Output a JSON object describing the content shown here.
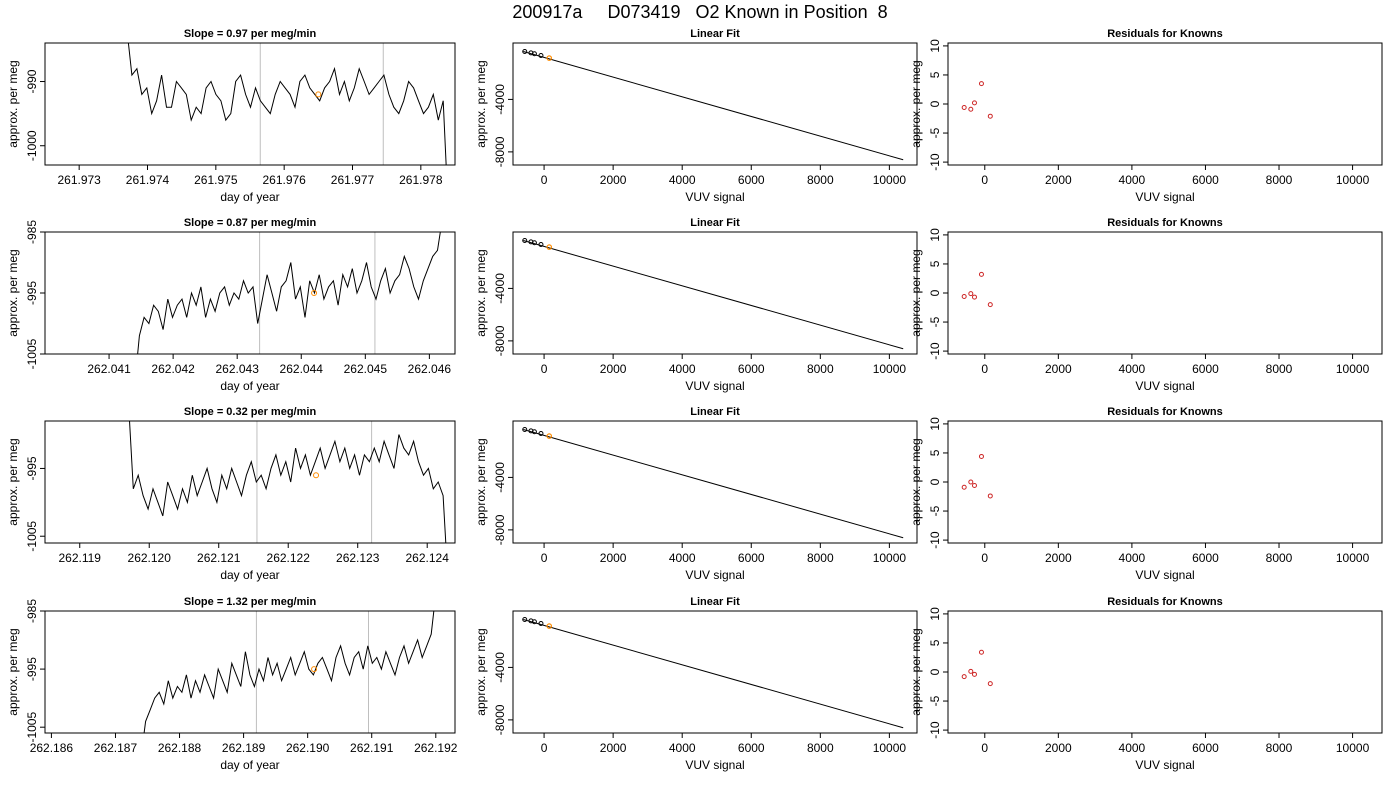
{
  "title": "200917a     D073419   O2 Known in Position  8",
  "chart_data": [
    {
      "type": "line",
      "title": "Slope =  0.97  per meg/min",
      "xlabel": "day of year",
      "ylabel": "approx. per meg",
      "xlim": [
        261.9725,
        261.9785
      ],
      "xticks": [
        "261.973",
        "261.974",
        "261.975",
        "261.976",
        "261.977",
        "261.978"
      ],
      "ylim": [
        -1003,
        -984
      ],
      "yticks": [
        "-990",
        "-1000"
      ],
      "vlines": [
        261.97565,
        261.97745
      ],
      "highlight": {
        "x": 261.9765,
        "y": -992
      },
      "series": [
        {
          "x_start": 261.9737,
          "x_end": 261.9784,
          "values": [
            -982,
            -989,
            -988,
            -992,
            -991,
            -995,
            -993,
            -989,
            -994,
            -994,
            -990,
            -991,
            -992,
            -996,
            -994,
            -995,
            -991,
            -990,
            -992,
            -993,
            -996,
            -995,
            -990,
            -989,
            -992,
            -994,
            -991,
            -993,
            -994,
            -995,
            -992,
            -990,
            -991,
            -992,
            -994,
            -990,
            -989,
            -991,
            -992,
            -993,
            -991,
            -990,
            -988,
            -992,
            -990,
            -993,
            -991,
            -988,
            -990,
            -992,
            -991,
            -990,
            -989,
            -992,
            -994,
            -995,
            -993,
            -990,
            -991,
            -993,
            -995,
            -994,
            -992,
            -996,
            -993,
            -1010
          ]
        }
      ]
    },
    {
      "type": "line",
      "title": "Linear Fit",
      "xlabel": "VUV signal",
      "ylabel": "approx. per meg",
      "xlim": [
        -900,
        10800
      ],
      "xticks": [
        "0",
        "2000",
        "4000",
        "6000",
        "8000",
        "10000"
      ],
      "ylim": [
        -9000,
        300
      ],
      "yticks": [
        "-4000",
        "-8000"
      ],
      "fit": {
        "x": [
          -600,
          10400
        ],
        "y": [
          -350,
          -8600
        ]
      },
      "knowns": {
        "x": [
          -560,
          -380,
          -280,
          -90
        ],
        "y": [
          -350,
          -450,
          -520,
          -650
        ]
      },
      "unknown": {
        "x": [
          150
        ],
        "y": [
          -850
        ]
      }
    },
    {
      "type": "scatter",
      "title": "Residuals for Knowns",
      "xlabel": "VUV signal",
      "ylabel": "approx. per meg",
      "xlim": [
        -1000,
        10800
      ],
      "xticks": [
        "0",
        "2000",
        "4000",
        "6000",
        "8000",
        "10000"
      ],
      "ylim": [
        -10.5,
        10.5
      ],
      "yticks": [
        "10",
        "5",
        "0",
        "-5",
        "-10"
      ],
      "x": [
        -560,
        -380,
        -280,
        -90,
        150
      ],
      "y": [
        -0.6,
        -0.9,
        0.2,
        3.5,
        -2.1
      ]
    },
    {
      "type": "line",
      "title": "Slope =  0.87  per meg/min",
      "xlabel": "day of year",
      "ylabel": "approx. per meg",
      "xlim": [
        262.04,
        262.0464
      ],
      "xticks": [
        "262.041",
        "262.042",
        "262.043",
        "262.044",
        "262.045",
        "262.046"
      ],
      "ylim": [
        -1005,
        -985
      ],
      "yticks": [
        "-985",
        "-995",
        "-1005"
      ],
      "vlines": [
        262.04335,
        262.04515
      ],
      "highlight": {
        "x": 262.0442,
        "y": -995
      },
      "series": [
        {
          "x_start": 262.0414,
          "x_end": 262.0462,
          "values": [
            -1010,
            -1002,
            -999,
            -1000,
            -997,
            -998,
            -1001,
            -996,
            -999,
            -997,
            -996,
            -999,
            -995,
            -997,
            -994,
            -999,
            -996,
            -998,
            -995,
            -994,
            -997,
            -995,
            -996,
            -993,
            -995,
            -994,
            -1000,
            -996,
            -992,
            -995,
            -998,
            -994,
            -993,
            -990,
            -996,
            -994,
            -999,
            -993,
            -995,
            -992,
            -996,
            -994,
            -993,
            -997,
            -992,
            -994,
            -991,
            -995,
            -993,
            -990,
            -994,
            -996,
            -993,
            -991,
            -995,
            -993,
            -992,
            -989,
            -991,
            -994,
            -996,
            -993,
            -991,
            -989,
            -988,
            -983
          ]
        }
      ]
    },
    {
      "type": "line",
      "title": "Linear Fit",
      "xlabel": "VUV signal",
      "ylabel": "approx. per meg",
      "xlim": [
        -900,
        10800
      ],
      "xticks": [
        "0",
        "2000",
        "4000",
        "6000",
        "8000",
        "10000"
      ],
      "ylim": [
        -9000,
        300
      ],
      "yticks": [
        "-4000",
        "-8000"
      ],
      "fit": {
        "x": [
          -600,
          10400
        ],
        "y": [
          -350,
          -8600
        ]
      },
      "knowns": {
        "x": [
          -560,
          -380,
          -280,
          -90
        ],
        "y": [
          -350,
          -450,
          -520,
          -650
        ]
      },
      "unknown": {
        "x": [
          150
        ],
        "y": [
          -850
        ]
      }
    },
    {
      "type": "scatter",
      "title": "Residuals for Knowns",
      "xlabel": "VUV signal",
      "ylabel": "approx. per meg",
      "xlim": [
        -1000,
        10800
      ],
      "xticks": [
        "0",
        "2000",
        "4000",
        "6000",
        "8000",
        "10000"
      ],
      "ylim": [
        -10.5,
        10.5
      ],
      "yticks": [
        "10",
        "5",
        "0",
        "-5",
        "-10"
      ],
      "x": [
        -560,
        -380,
        -280,
        -90,
        150
      ],
      "y": [
        -0.6,
        -0.1,
        -0.7,
        3.2,
        -2.0
      ]
    },
    {
      "type": "line",
      "title": "Slope =  0.32  per meg/min",
      "xlabel": "day of year",
      "ylabel": "approx. per meg",
      "xlim": [
        262.1185,
        262.1244
      ],
      "xticks": [
        "262.119",
        "262.120",
        "262.121",
        "262.122",
        "262.123",
        "262.124"
      ],
      "ylim": [
        -1006,
        -988
      ],
      "yticks": [
        "-995",
        "-1005"
      ],
      "vlines": [
        262.12155,
        262.1232
      ],
      "highlight": {
        "x": 262.1224,
        "y": -996
      },
      "series": [
        {
          "x_start": 262.1197,
          "x_end": 262.1243,
          "values": [
            -985,
            -998,
            -996,
            -999,
            -1001,
            -998,
            -1000,
            -1002,
            -997,
            -999,
            -1001,
            -998,
            -1000,
            -996,
            -999,
            -997,
            -995,
            -998,
            -1000,
            -996,
            -998,
            -995,
            -997,
            -999,
            -996,
            -994,
            -997,
            -996,
            -998,
            -995,
            -993,
            -996,
            -994,
            -997,
            -992,
            -995,
            -993,
            -996,
            -994,
            -992,
            -995,
            -993,
            -991,
            -994,
            -992,
            -995,
            -993,
            -996,
            -993,
            -994,
            -992,
            -994,
            -991,
            -993,
            -995,
            -990,
            -992,
            -993,
            -991,
            -994,
            -996,
            -995,
            -998,
            -997,
            -999,
            -1012
          ]
        }
      ]
    },
    {
      "type": "line",
      "title": "Linear Fit",
      "xlabel": "VUV signal",
      "ylabel": "approx. per meg",
      "xlim": [
        -900,
        10800
      ],
      "xticks": [
        "0",
        "2000",
        "4000",
        "6000",
        "8000",
        "10000"
      ],
      "ylim": [
        -9000,
        300
      ],
      "yticks": [
        "-4000",
        "-8000"
      ],
      "fit": {
        "x": [
          -600,
          10400
        ],
        "y": [
          -350,
          -8600
        ]
      },
      "knowns": {
        "x": [
          -560,
          -380,
          -280,
          -90
        ],
        "y": [
          -350,
          -450,
          -520,
          -650
        ]
      },
      "unknown": {
        "x": [
          150
        ],
        "y": [
          -850
        ]
      }
    },
    {
      "type": "scatter",
      "title": "Residuals for Knowns",
      "xlabel": "VUV signal",
      "ylabel": "approx. per meg",
      "xlim": [
        -1000,
        10800
      ],
      "xticks": [
        "0",
        "2000",
        "4000",
        "6000",
        "8000",
        "10000"
      ],
      "ylim": [
        -10.5,
        10.5
      ],
      "yticks": [
        "10",
        "5",
        "0",
        "-5",
        "-10"
      ],
      "x": [
        -560,
        -380,
        -280,
        -90,
        150
      ],
      "y": [
        -0.9,
        0.0,
        -0.6,
        4.4,
        -2.4
      ]
    },
    {
      "type": "line",
      "title": "Slope =  1.32  per meg/min",
      "xlabel": "day of year",
      "ylabel": "approx. per meg",
      "xlim": [
        262.1859,
        262.1923
      ],
      "xticks": [
        "262.186",
        "262.187",
        "262.188",
        "262.189",
        "262.190",
        "262.191",
        "262.192"
      ],
      "ylim": [
        -1006,
        -985
      ],
      "yticks": [
        "-985",
        "-995",
        "-1005"
      ],
      "vlines": [
        262.1892,
        262.19095
      ],
      "highlight": {
        "x": 262.1901,
        "y": -995
      },
      "series": [
        {
          "x_start": 262.1874,
          "x_end": 262.192,
          "values": [
            -1010,
            -1004,
            -1002,
            -1000,
            -999,
            -1001,
            -997,
            -1000,
            -998,
            -999,
            -996,
            -1000,
            -997,
            -999,
            -996,
            -998,
            -1000,
            -995,
            -997,
            -999,
            -994,
            -996,
            -998,
            -992,
            -996,
            -998,
            -995,
            -997,
            -993,
            -996,
            -994,
            -997,
            -995,
            -993,
            -996,
            -994,
            -992,
            -995,
            -996,
            -994,
            -993,
            -995,
            -997,
            -993,
            -991,
            -994,
            -996,
            -993,
            -992,
            -995,
            -991,
            -994,
            -993,
            -995,
            -992,
            -994,
            -996,
            -993,
            -991,
            -994,
            -992,
            -990,
            -993,
            -991,
            -989,
            -982
          ]
        }
      ]
    },
    {
      "type": "line",
      "title": "Linear Fit",
      "xlabel": "VUV signal",
      "ylabel": "approx. per meg",
      "xlim": [
        -900,
        10800
      ],
      "xticks": [
        "0",
        "2000",
        "4000",
        "6000",
        "8000",
        "10000"
      ],
      "ylim": [
        -9000,
        300
      ],
      "yticks": [
        "-4000",
        "-8000"
      ],
      "fit": {
        "x": [
          -600,
          10400
        ],
        "y": [
          -350,
          -8600
        ]
      },
      "knowns": {
        "x": [
          -560,
          -380,
          -280,
          -90
        ],
        "y": [
          -350,
          -450,
          -520,
          -650
        ]
      },
      "unknown": {
        "x": [
          150
        ],
        "y": [
          -850
        ]
      }
    },
    {
      "type": "scatter",
      "title": "Residuals for Knowns",
      "xlabel": "VUV signal",
      "ylabel": "approx. per meg",
      "xlim": [
        -1000,
        10800
      ],
      "xticks": [
        "0",
        "2000",
        "4000",
        "6000",
        "8000",
        "10000"
      ],
      "ylim": [
        -10.5,
        10.5
      ],
      "yticks": [
        "10",
        "5",
        "0",
        "-5",
        "-10"
      ],
      "x": [
        -560,
        -380,
        -280,
        -90,
        150
      ],
      "y": [
        -0.8,
        0.1,
        -0.4,
        3.4,
        -2.0
      ]
    }
  ],
  "colors": {
    "line": "#000000",
    "vline": "#bebebe",
    "highlight": "#ff8c00",
    "residual": "#cd2626",
    "axis": "#000000"
  }
}
